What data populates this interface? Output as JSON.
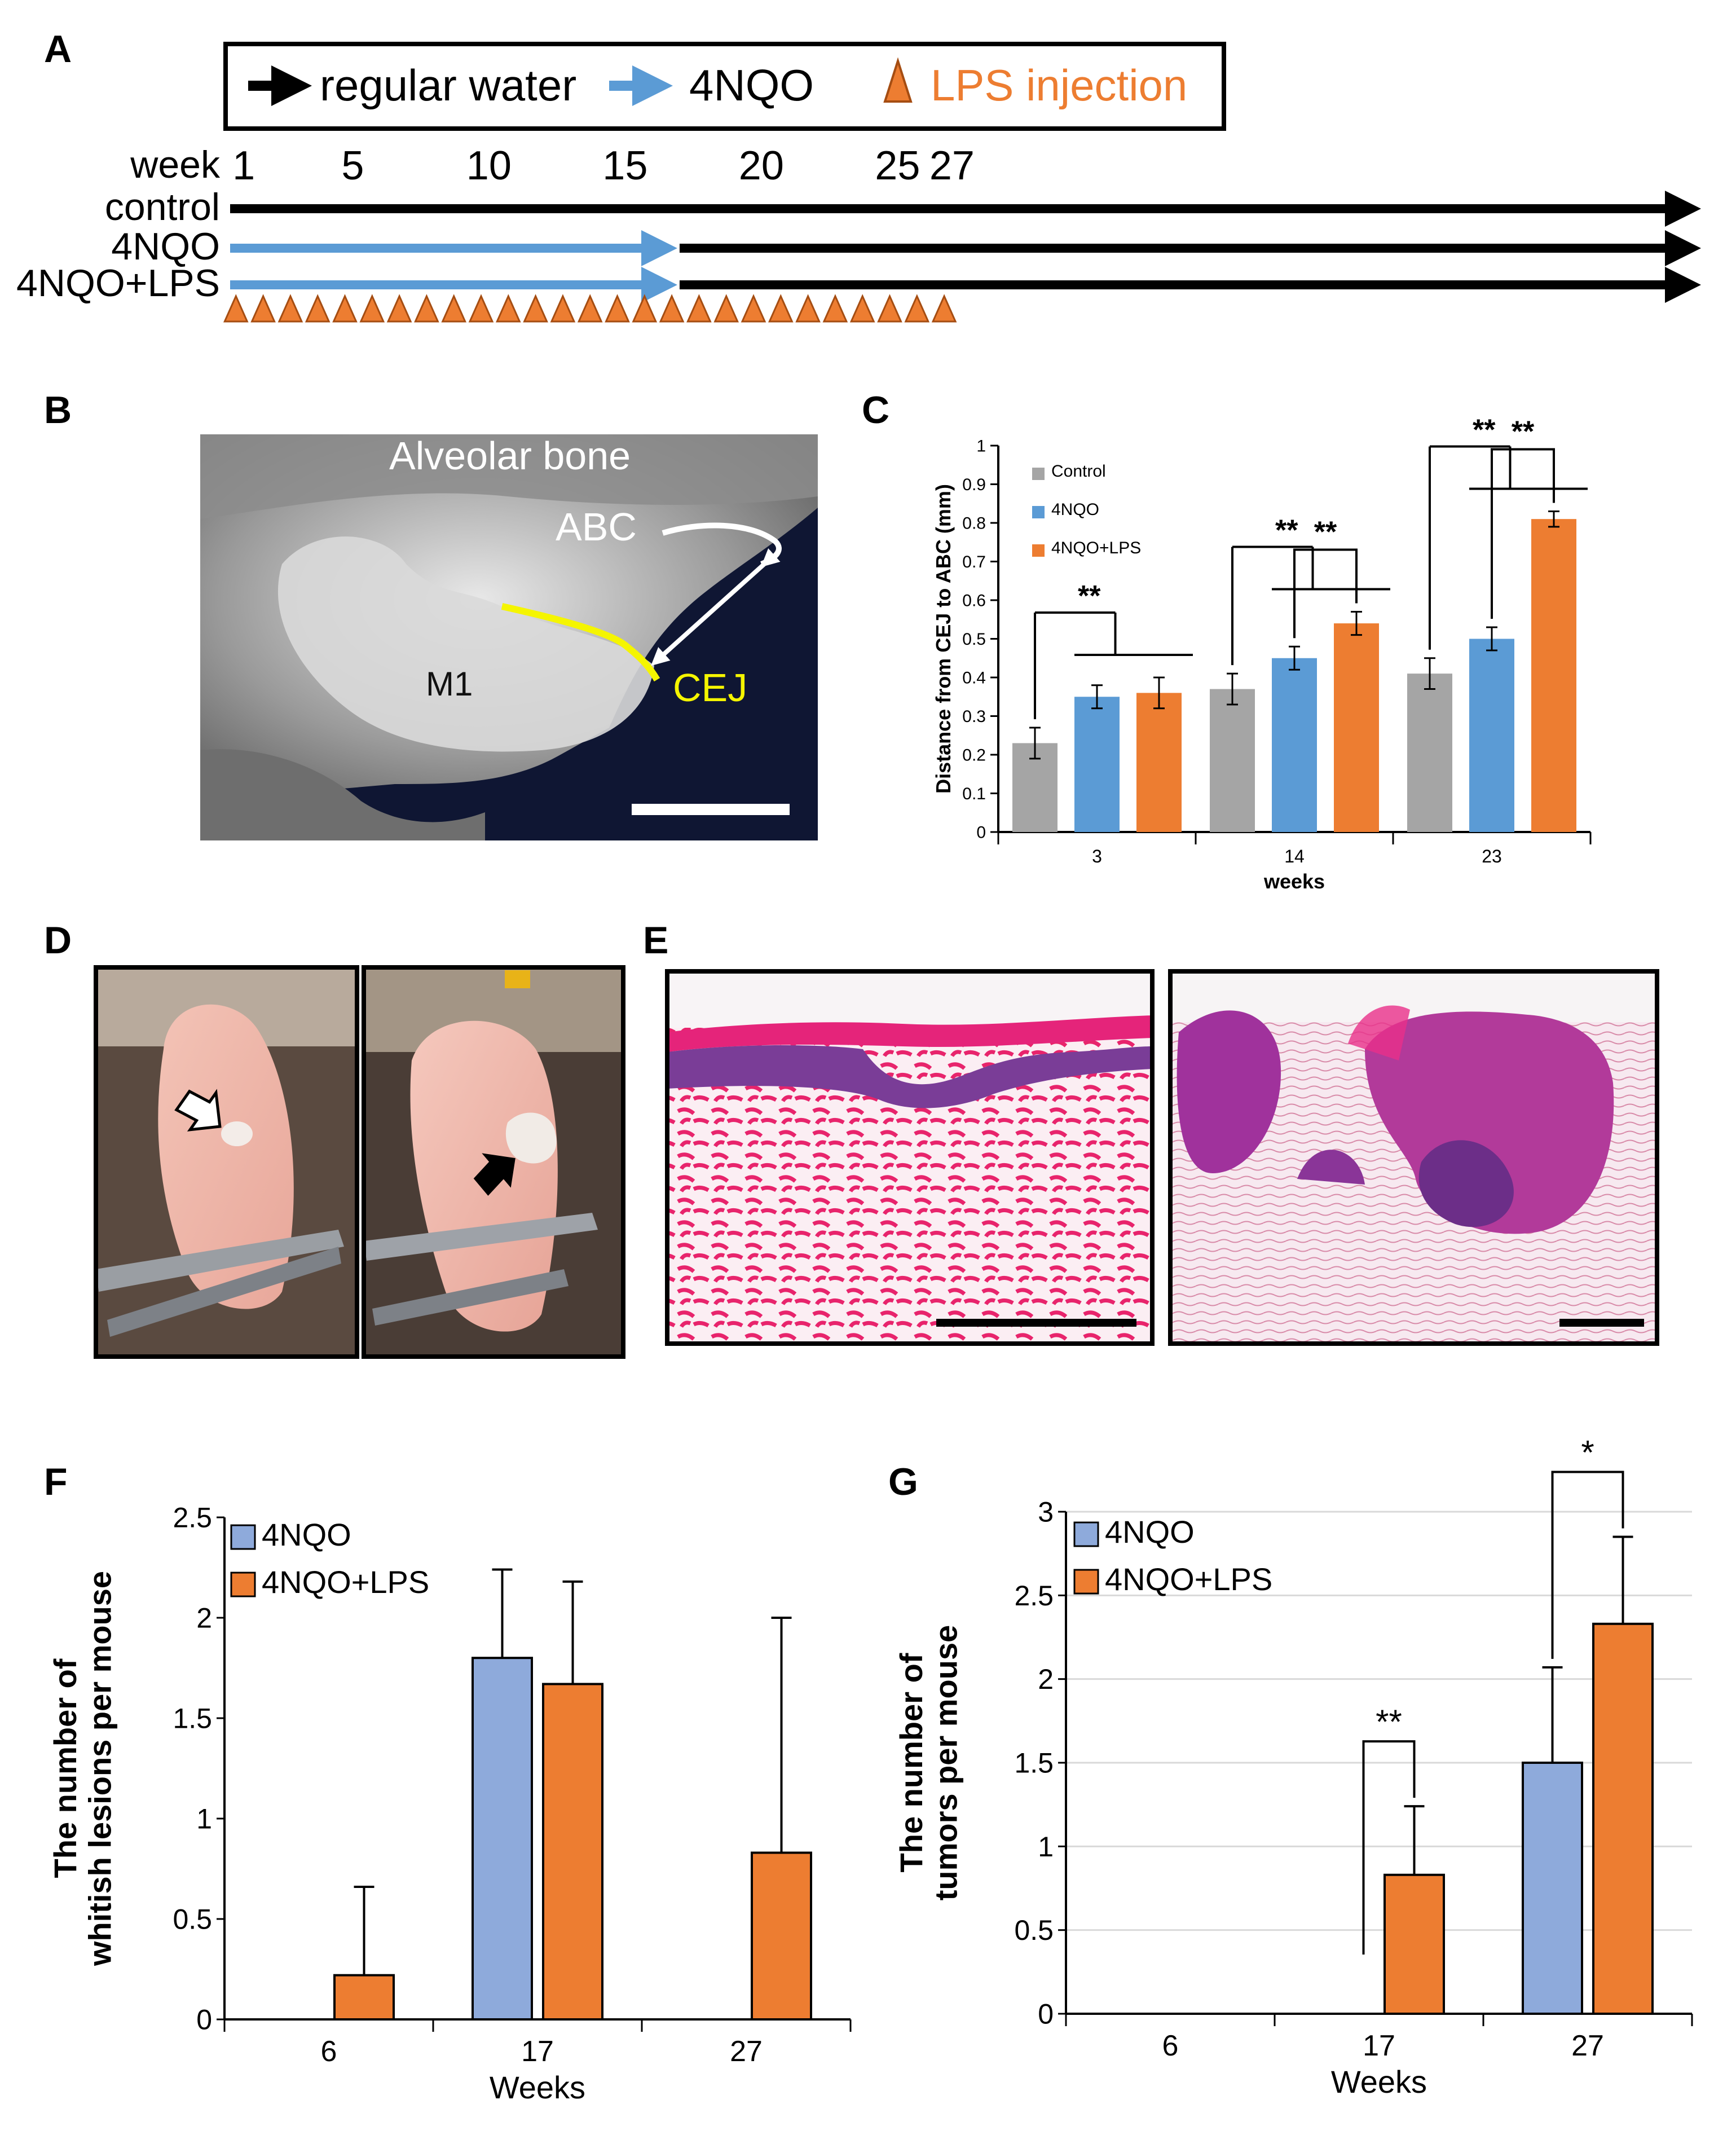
{
  "panel_labels": {
    "A": "A",
    "B": "B",
    "C": "C",
    "D": "D",
    "E": "E",
    "F": "F",
    "G": "G"
  },
  "colors": {
    "regular": "#000000",
    "nqo": "#5b9bd5",
    "lps": "#ed7d31",
    "gray": "#a5a5a5",
    "blue_fg": "#8eaadb"
  },
  "timeline": {
    "legend": {
      "regular": "regular water",
      "nqo": "4NQO",
      "lps": "LPS injection"
    },
    "week_label": "week",
    "week_ticks": [
      {
        "week": 1,
        "label": "1"
      },
      {
        "week": 5,
        "label": "5"
      },
      {
        "week": 10,
        "label": "10"
      },
      {
        "week": 15,
        "label": "15"
      },
      {
        "week": 20,
        "label": "20"
      },
      {
        "week": 25,
        "label": "25"
      },
      {
        "week": 27,
        "label": "27"
      }
    ],
    "rows": [
      {
        "label": "control",
        "nqo_until_week": 0
      },
      {
        "label": "4NQO",
        "nqo_until_week": 17
      },
      {
        "label": "4NQO+LPS",
        "nqo_until_week": 17
      }
    ],
    "lps_weeks": [
      1,
      2,
      3,
      4,
      5,
      6,
      7,
      8,
      9,
      10,
      11,
      12,
      13,
      14,
      15,
      16,
      17,
      18,
      19,
      20,
      21,
      22,
      23,
      24,
      25,
      26,
      27
    ]
  },
  "micro_ct": {
    "alveolar": "Alveolar bone",
    "abc": "ABC",
    "m1": "M1",
    "cej": "CEJ"
  },
  "chart_data": [
    {
      "panel": "C",
      "type": "bar",
      "title": "",
      "categories": [
        "3",
        "14",
        "23"
      ],
      "series": [
        {
          "name": "Control",
          "values": [
            0.23,
            0.37,
            0.41
          ],
          "errors": [
            0.04,
            0.04,
            0.04
          ]
        },
        {
          "name": "4NQO",
          "values": [
            0.35,
            0.45,
            0.5
          ],
          "errors": [
            0.03,
            0.03,
            0.03
          ]
        },
        {
          "name": "4NQO+LPS",
          "values": [
            0.36,
            0.54,
            0.81
          ],
          "errors": [
            0.04,
            0.03,
            0.02
          ]
        }
      ],
      "xlabel": "weeks",
      "ylabel": "Distance from CEJ to ABC (mm)",
      "ylim": [
        0,
        1
      ],
      "yticks": [
        "0",
        "0.1",
        "0.2",
        "0.3",
        "0.4",
        "0.5",
        "0.6",
        "0.7",
        "0.8",
        "0.9",
        "1"
      ],
      "significance": [
        "**",
        "**",
        "**",
        "**",
        "**"
      ]
    },
    {
      "panel": "F",
      "type": "bar",
      "categories": [
        "6",
        "17",
        "27"
      ],
      "series": [
        {
          "name": "4NQO",
          "values": [
            0,
            1.8,
            0
          ],
          "errors": [
            0,
            0.44,
            0
          ]
        },
        {
          "name": "4NQO+LPS",
          "values": [
            0.22,
            1.67,
            0.83
          ],
          "errors": [
            0.44,
            0.51,
            1.17
          ]
        }
      ],
      "xlabel": "Weeks",
      "ylabel": "The number of whitish lesions per mouse",
      "ylabel_lines": [
        "The number of",
        "whitish lesions per mouse"
      ],
      "ylim": [
        0,
        2.5
      ],
      "yticks": [
        "0",
        "0.5",
        "1",
        "1.5",
        "2",
        "2.5"
      ]
    },
    {
      "panel": "G",
      "type": "bar",
      "categories": [
        "6",
        "17",
        "27"
      ],
      "series": [
        {
          "name": "4NQO",
          "values": [
            0,
            0,
            1.5
          ],
          "errors": [
            0,
            0,
            0.57
          ]
        },
        {
          "name": "4NQO+LPS",
          "values": [
            0,
            0.83,
            2.33
          ],
          "errors": [
            0,
            0.41,
            0.52
          ]
        }
      ],
      "xlabel": "Weeks",
      "ylabel": "The number of tumors per mouse",
      "ylabel_lines": [
        "The number of",
        "tumors per mouse"
      ],
      "ylim": [
        0,
        3
      ],
      "yticks": [
        "0",
        "0.5",
        "1",
        "1.5",
        "2",
        "2.5",
        "3"
      ],
      "significance": [
        "**",
        "*"
      ]
    }
  ]
}
